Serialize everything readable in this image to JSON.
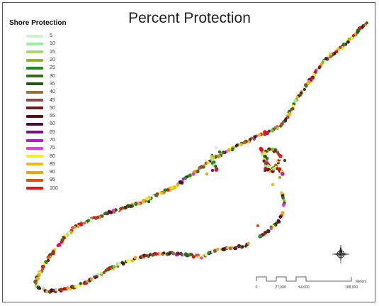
{
  "map": {
    "title": "Percent Protection",
    "legend": {
      "title": "Shore Protection",
      "items": [
        {
          "label": "5",
          "color": "#ccf5cc"
        },
        {
          "label": "10",
          "color": "#99ee99"
        },
        {
          "label": "15",
          "color": "#a8d86e"
        },
        {
          "label": "20",
          "color": "#8fb530"
        },
        {
          "label": "25",
          "color": "#1f8a1f"
        },
        {
          "label": "30",
          "color": "#3d6b17"
        },
        {
          "label": "35",
          "color": "#1e5a0f"
        },
        {
          "label": "40",
          "color": "#a36a3a"
        },
        {
          "label": "45",
          "color": "#8a4a4a"
        },
        {
          "label": "50",
          "color": "#6b1d1d"
        },
        {
          "label": "55",
          "color": "#5a0f12"
        },
        {
          "label": "60",
          "color": "#4a0d3d"
        },
        {
          "label": "65",
          "color": "#7a1080"
        },
        {
          "label": "70",
          "color": "#b020c0"
        },
        {
          "label": "75",
          "color": "#e040e0"
        },
        {
          "label": "80",
          "color": "#f0f020"
        },
        {
          "label": "85",
          "color": "#f2b91e"
        },
        {
          "label": "90",
          "color": "#f0a020"
        },
        {
          "label": "95",
          "color": "#e05010"
        },
        {
          "label": "100",
          "color": "#e01515"
        }
      ]
    },
    "scale_bar": {
      "unit": "Meters",
      "ticks": [
        "0",
        "27,000",
        "54,000",
        "108,000"
      ]
    },
    "north_arrow": {
      "icon": "compass-rose-icon"
    }
  }
}
